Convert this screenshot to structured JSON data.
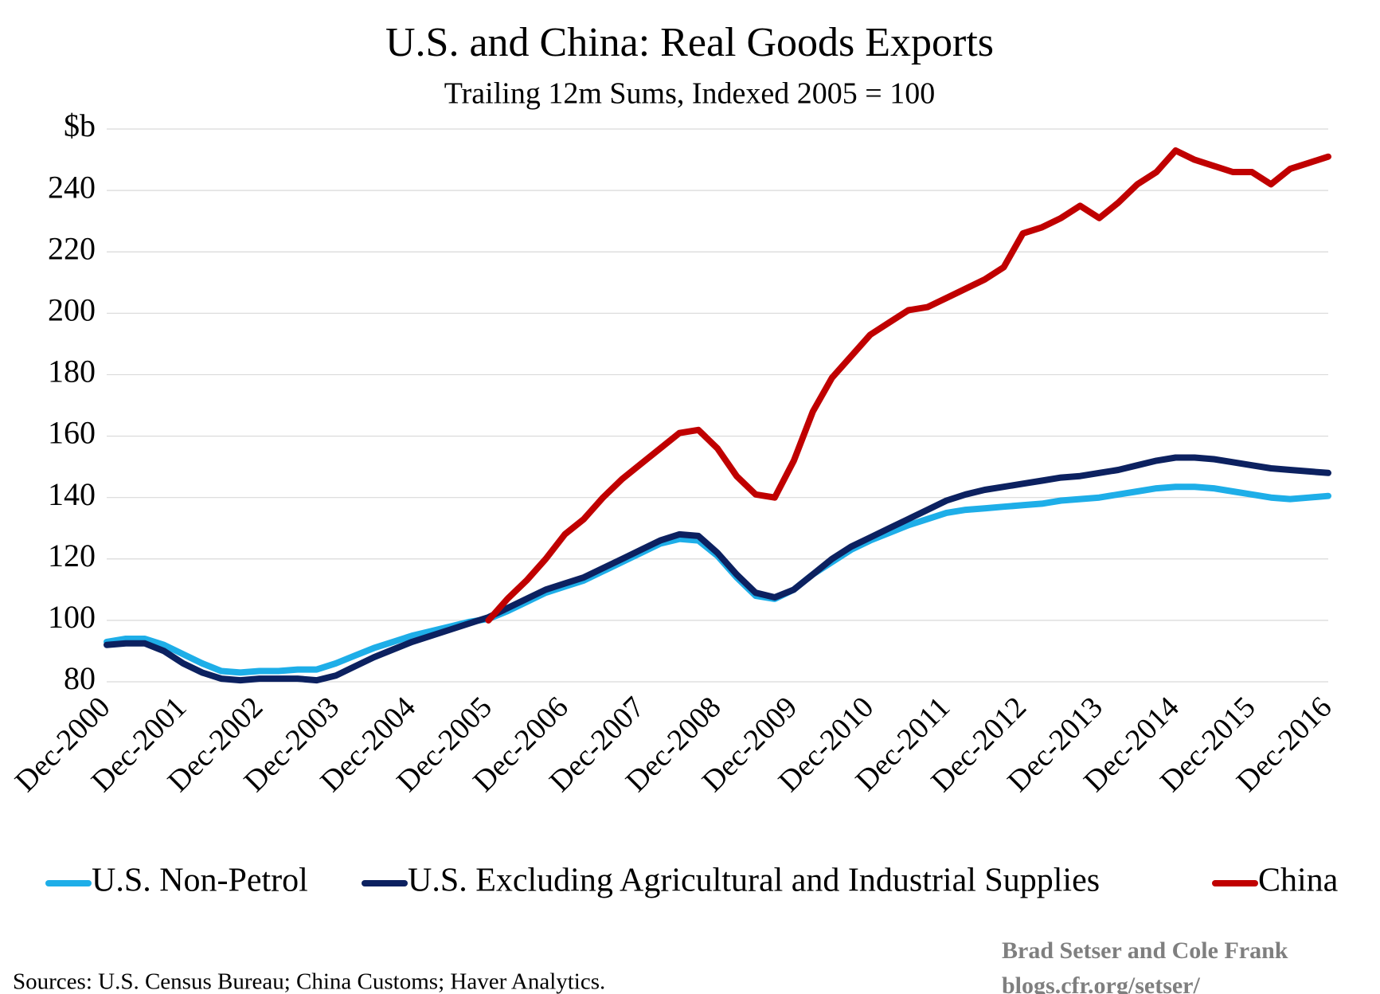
{
  "chart_data": {
    "type": "line",
    "title": "U.S. and China: Real Goods Exports",
    "subtitle": "Trailing 12m Sums, Indexed 2005 = 100",
    "source": "Sources: U.S. Census Bureau; China Customs; Haver Analytics.",
    "credit": [
      "Brad Setser and Cole Frank",
      "blogs.cfr.org/setser/"
    ],
    "categories": [
      "Dec-2000",
      null,
      null,
      null,
      "Dec-2001",
      null,
      null,
      null,
      "Dec-2002",
      null,
      null,
      null,
      "Dec-2003",
      null,
      null,
      null,
      "Dec-2004",
      null,
      null,
      null,
      "Dec-2005",
      null,
      null,
      null,
      "Dec-2006",
      null,
      null,
      null,
      "Dec-2007",
      null,
      null,
      null,
      "Dec-2008",
      null,
      null,
      null,
      "Dec-2009",
      null,
      null,
      null,
      "Dec-2010",
      null,
      null,
      null,
      "Dec-2011",
      null,
      null,
      null,
      "Dec-2012",
      null,
      null,
      null,
      "Dec-2013",
      null,
      null,
      null,
      "Dec-2014",
      null,
      null,
      null,
      "Dec-2015",
      null,
      null,
      null,
      "Dec-2016"
    ],
    "series": [
      {
        "name": "U.S. Non-Petrol",
        "color": "#1eaee8",
        "values": [
          93,
          94,
          94,
          92,
          89,
          86,
          83.5,
          83,
          83.5,
          83.5,
          84,
          84,
          86,
          88.5,
          91,
          93,
          95,
          96.5,
          98,
          99.5,
          100.5,
          103,
          106,
          109,
          111,
          113,
          116,
          119,
          122,
          125,
          126.5,
          126,
          121,
          114,
          108,
          107,
          110,
          115,
          119,
          123,
          126,
          128.5,
          131,
          133,
          135,
          136,
          136.5,
          137,
          137.5,
          138,
          139,
          139.5,
          140,
          141,
          142,
          143,
          143.5,
          143.5,
          143,
          142,
          141,
          140,
          139.5,
          140,
          140.5
        ]
      },
      {
        "name": "U.S. Excluding Agricultural and Industrial Supplies",
        "color": "#0c2160",
        "values": [
          92,
          92.5,
          92.5,
          90,
          86,
          83,
          81,
          80.5,
          81,
          81,
          81,
          80.5,
          82,
          85,
          88,
          90.5,
          93,
          95,
          97,
          99,
          101,
          104,
          107,
          110,
          112,
          114,
          117,
          120,
          123,
          126,
          128,
          127.5,
          122,
          115,
          109,
          107.5,
          110,
          115,
          120,
          124,
          127,
          130,
          133,
          136,
          139,
          141,
          142.5,
          143.5,
          144.5,
          145.5,
          146.5,
          147,
          148,
          149,
          150.5,
          152,
          153,
          153,
          152.5,
          151.5,
          150.5,
          149.5,
          149,
          148.5,
          148
        ]
      },
      {
        "name": "China",
        "color": "#c00000",
        "values": [
          null,
          null,
          null,
          null,
          null,
          null,
          null,
          null,
          null,
          null,
          null,
          null,
          null,
          null,
          null,
          null,
          null,
          null,
          null,
          null,
          100,
          107,
          113,
          120,
          128,
          133,
          140,
          146,
          151,
          156,
          161,
          162,
          156,
          147,
          141,
          140,
          152,
          168,
          179,
          186,
          193,
          197,
          201,
          202,
          205,
          208,
          211,
          215,
          226,
          228,
          231,
          235,
          231,
          236,
          242,
          246,
          253,
          250,
          248,
          246,
          246,
          242,
          247,
          249,
          251
        ]
      }
    ],
    "ylim": [
      80,
      260
    ],
    "yticks": [
      80,
      100,
      120,
      140,
      160,
      180,
      200,
      220,
      240,
      {
        "value": 260,
        "label": "$b"
      }
    ],
    "grid": true,
    "legend": "bottom"
  }
}
